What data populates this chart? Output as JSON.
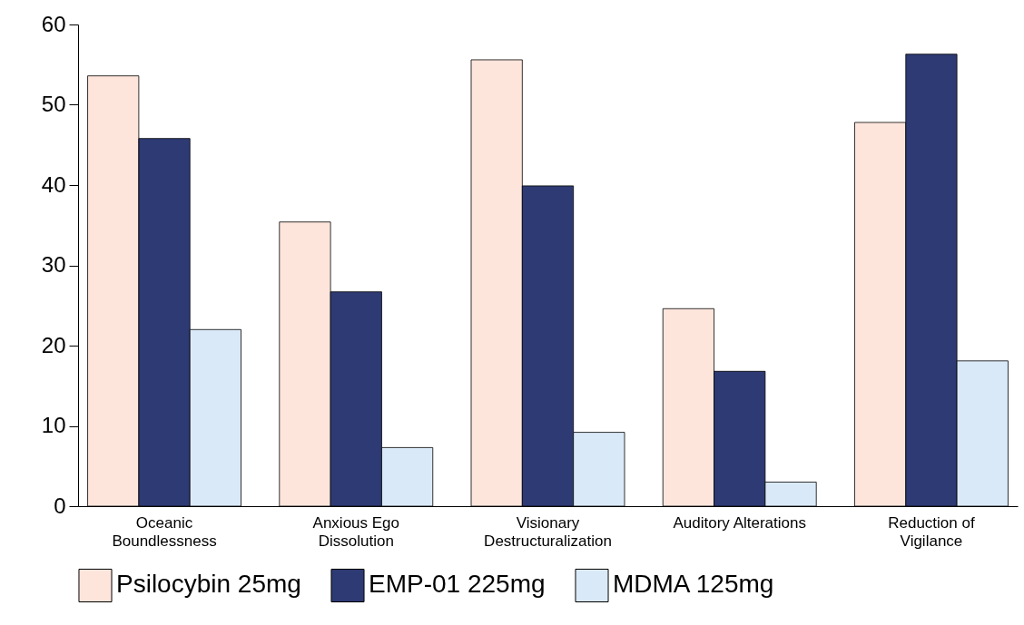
{
  "chart_data": {
    "type": "bar",
    "categories": [
      "Oceanic Boundlessness",
      "Anxious Ego Dissolution",
      "Visionary Destructuralization",
      "Auditory Alterations",
      "Reduction of Vigilance"
    ],
    "series": [
      {
        "name": "Psilocybin 25mg",
        "color": "#fde5dc",
        "values": [
          53.6,
          35.4,
          55.6,
          24.6,
          47.8
        ]
      },
      {
        "name": "EMP-01 225mg",
        "color": "#2e3a74",
        "values": [
          45.8,
          26.7,
          39.9,
          16.8,
          56.3
        ]
      },
      {
        "name": "MDMA 125mg",
        "color": "#dae9f7",
        "values": [
          22.0,
          7.3,
          9.2,
          3.0,
          18.1
        ]
      }
    ],
    "ylim": [
      0,
      60
    ],
    "yticks": [
      0,
      10,
      20,
      30,
      40,
      50,
      60
    ],
    "grid": false,
    "legend": "bottom"
  }
}
